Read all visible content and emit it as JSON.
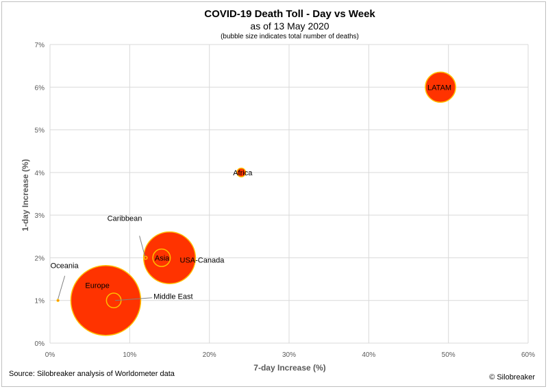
{
  "chart_data": {
    "type": "scatter",
    "title": "COVID-19 Death Toll - Day vs Week",
    "subtitle": "as of 13 May 2020",
    "note": "(bubble size indicates total number of deaths)",
    "xlabel": "7-day Increase (%)",
    "ylabel": "1-day Increase (%)",
    "xlim": [
      0,
      60
    ],
    "ylim": [
      0,
      7
    ],
    "x_ticks": [
      "0%",
      "10%",
      "20%",
      "30%",
      "40%",
      "50%",
      "60%"
    ],
    "y_ticks": [
      "0%",
      "1%",
      "2%",
      "3%",
      "4%",
      "5%",
      "6%",
      "7%"
    ],
    "grid": true,
    "bubble_fill": "#ff3300",
    "bubble_stroke": "#ffc000",
    "points": [
      {
        "label": "Europe",
        "x": 7,
        "y": 1,
        "size": 160000
      },
      {
        "label": "USA-Canada",
        "x": 15,
        "y": 2,
        "size": 88000
      },
      {
        "label": "LATAM",
        "x": 49,
        "y": 6,
        "size": 30000
      },
      {
        "label": "Asia",
        "x": 14,
        "y": 2,
        "size": 10000
      },
      {
        "label": "Middle East",
        "x": 8,
        "y": 1,
        "size": 7000
      },
      {
        "label": "Africa",
        "x": 24,
        "y": 4,
        "size": 2500
      },
      {
        "label": "Caribbean",
        "x": 12,
        "y": 2,
        "size": 300
      },
      {
        "label": "Oceania",
        "x": 1,
        "y": 1,
        "size": 130
      }
    ]
  },
  "footer": {
    "source": "Source: Silobreaker analysis of Worldometer data",
    "credit": "© Silobreaker"
  }
}
